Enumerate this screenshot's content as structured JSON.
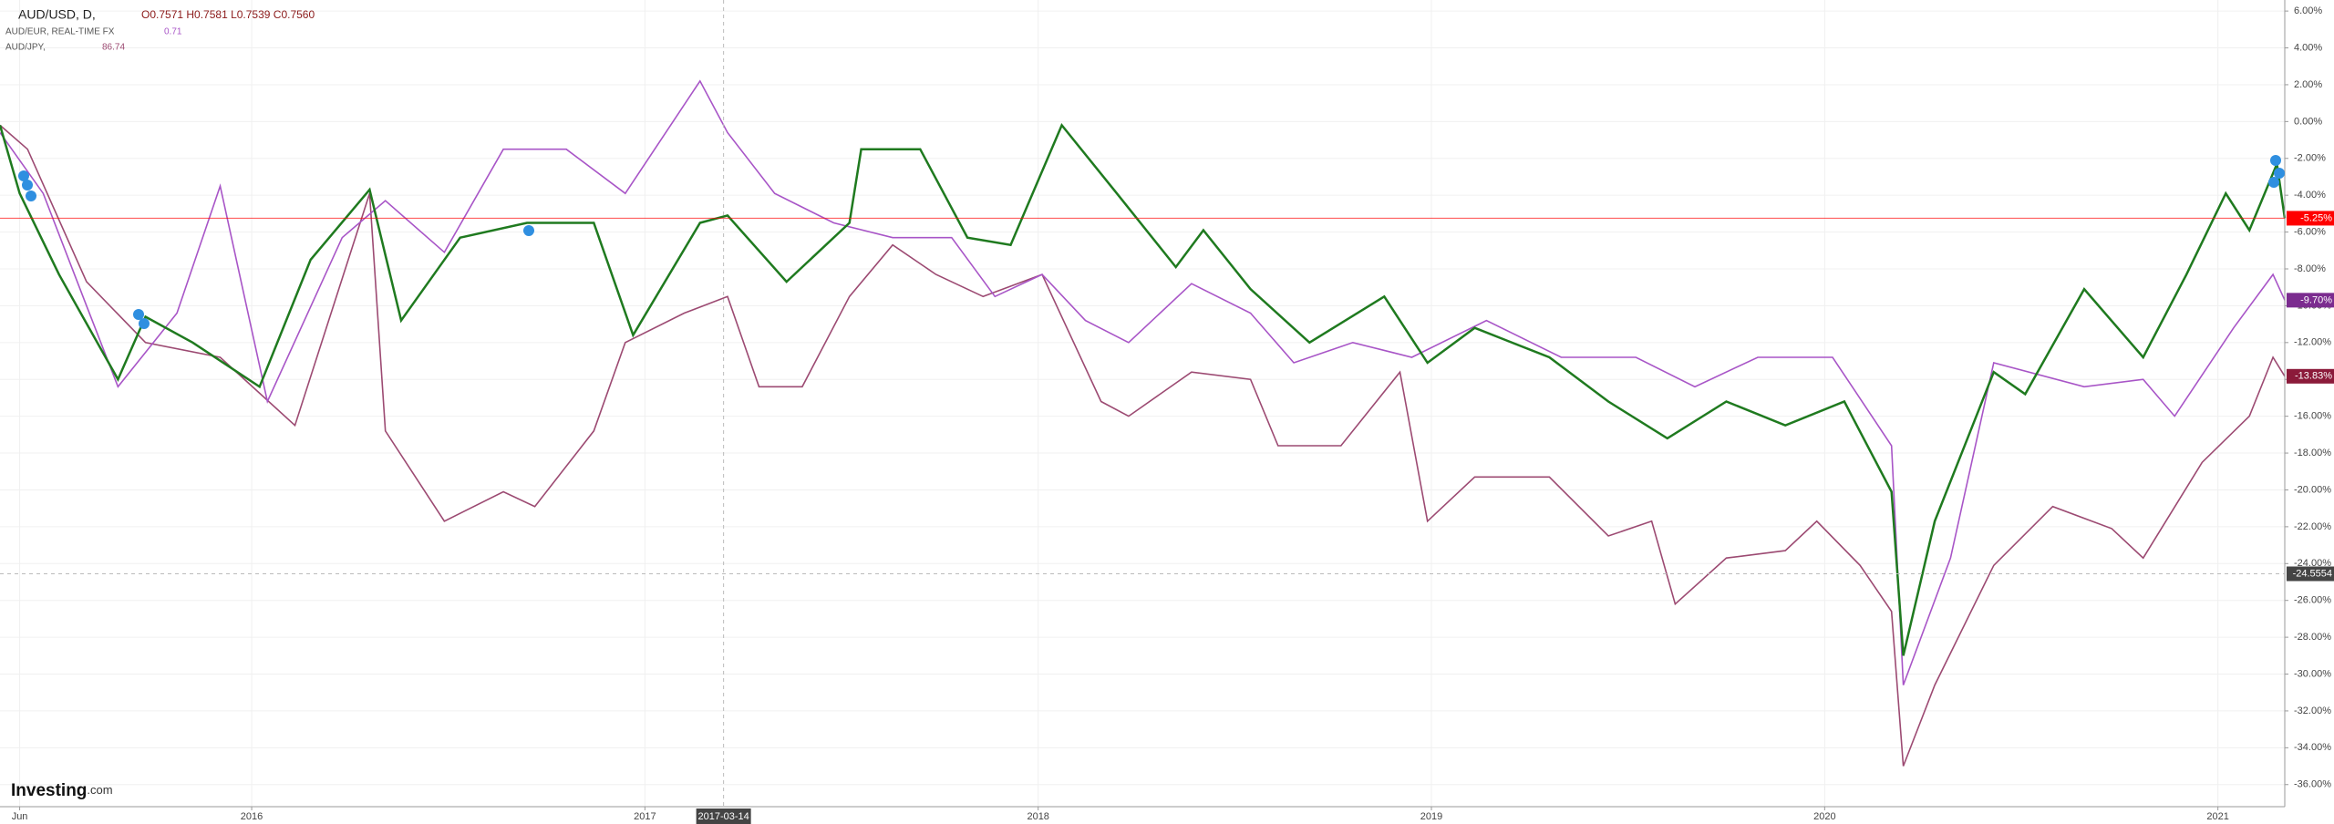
{
  "chart_data": {
    "type": "line",
    "header": {
      "ohlc": "O0.7571 H0.7581 L0.7539 C0.7560"
    },
    "series": [
      {
        "name": "AUD/USD, D,",
        "color": "#1f7a1f",
        "info": null,
        "x": [
          2015.36,
          2015.41,
          2015.51,
          2015.66,
          2015.73,
          2015.85,
          2016.02,
          2016.15,
          2016.3,
          2016.38,
          2016.53,
          2016.7,
          2016.87,
          2016.97,
          2017.14,
          2017.21,
          2017.36,
          2017.52,
          2017.55,
          2017.7,
          2017.82,
          2017.93,
          2018.06,
          2018.2,
          2018.35,
          2018.42,
          2018.54,
          2018.69,
          2018.88,
          2018.99,
          2019.11,
          2019.3,
          2019.45,
          2019.6,
          2019.75,
          2019.9,
          2020.05,
          2020.17,
          2020.2,
          2020.28,
          2020.43,
          2020.51,
          2020.66,
          2020.81,
          2020.92,
          2021.02,
          2021.08,
          2021.15,
          2021.17
        ],
        "values": [
          -0.2,
          -3.9,
          -8.3,
          -14,
          -10.6,
          -12,
          -14.4,
          -7.5,
          -3.7,
          -10.8,
          -6.3,
          -5.5,
          -5.5,
          -11.6,
          -5.5,
          -5.1,
          -8.7,
          -5.5,
          -1.5,
          -1.5,
          -6.3,
          -6.7,
          -0.2,
          -3.9,
          -7.9,
          -5.9,
          -9.1,
          -12,
          -9.5,
          -13.1,
          -11.2,
          -12.8,
          -15.2,
          -17.2,
          -15.2,
          -16.5,
          -15.2,
          -20.1,
          -29,
          -21.7,
          -13.6,
          -14.8,
          -9.1,
          -12.8,
          -8.3,
          -3.9,
          -5.9,
          -2.3,
          -5.25
        ],
        "last": {
          "value": -5.25,
          "label": "-5.25%",
          "color": "#ff0000"
        }
      },
      {
        "name": "AUD/EUR, REAL-TIME FX",
        "color": "#a855c7",
        "info": "0.71",
        "x": [
          2015.36,
          2015.47,
          2015.58,
          2015.66,
          2015.81,
          2015.92,
          2016.04,
          2016.23,
          2016.34,
          2016.49,
          2016.64,
          2016.8,
          2016.95,
          2017.14,
          2017.21,
          2017.33,
          2017.48,
          2017.63,
          2017.78,
          2017.89,
          2018.01,
          2018.12,
          2018.23,
          2018.39,
          2018.54,
          2018.65,
          2018.8,
          2018.95,
          2019.14,
          2019.33,
          2019.52,
          2019.67,
          2019.83,
          2020.02,
          2020.17,
          2020.2,
          2020.32,
          2020.43,
          2020.66,
          2020.81,
          2020.89,
          2021.04,
          2021.14,
          2021.17
        ],
        "values": [
          -0.6,
          -3.9,
          -10,
          -14.4,
          -10.4,
          -3.5,
          -15.2,
          -6.3,
          -4.3,
          -7.1,
          -1.5,
          -1.5,
          -3.9,
          2.2,
          -0.6,
          -3.9,
          -5.5,
          -6.3,
          -6.3,
          -9.5,
          -8.3,
          -10.8,
          -12,
          -8.8,
          -10.4,
          -13.1,
          -12,
          -12.8,
          -10.8,
          -12.8,
          -12.8,
          -14.4,
          -12.8,
          -12.8,
          -17.6,
          -30.6,
          -23.7,
          -13.1,
          -14.4,
          -14,
          -16,
          -11.2,
          -8.3,
          -9.7
        ],
        "last": {
          "value": -9.7,
          "label": "-9.70%",
          "color": "#7b2c8f"
        }
      },
      {
        "name": "AUD/JPY,",
        "color": "#9c4a72",
        "info": "86.74",
        "x": [
          2015.36,
          2015.43,
          2015.58,
          2015.73,
          2015.92,
          2016.11,
          2016.3,
          2016.34,
          2016.49,
          2016.64,
          2016.72,
          2016.87,
          2016.95,
          2017.1,
          2017.21,
          2017.29,
          2017.4,
          2017.52,
          2017.63,
          2017.74,
          2017.86,
          2018.01,
          2018.16,
          2018.23,
          2018.39,
          2018.54,
          2018.61,
          2018.77,
          2018.92,
          2018.99,
          2019.11,
          2019.3,
          2019.45,
          2019.56,
          2019.62,
          2019.75,
          2019.9,
          2019.98,
          2020.09,
          2020.17,
          2020.2,
          2020.28,
          2020.43,
          2020.58,
          2020.73,
          2020.81,
          2020.96,
          2021.08,
          2021.14,
          2021.17
        ],
        "values": [
          -0.2,
          -1.5,
          -8.7,
          -12,
          -12.8,
          -16.5,
          -3.9,
          -16.8,
          -21.7,
          -20.1,
          -20.9,
          -16.8,
          -12,
          -10.4,
          -9.5,
          -14.4,
          -14.4,
          -9.5,
          -6.7,
          -8.3,
          -9.5,
          -8.3,
          -15.2,
          -16,
          -13.6,
          -14,
          -17.6,
          -17.6,
          -13.6,
          -21.7,
          -19.3,
          -19.3,
          -22.5,
          -21.7,
          -26.2,
          -23.7,
          -23.3,
          -21.7,
          -24.1,
          -26.6,
          -35,
          -30.6,
          -24.1,
          -20.9,
          -22.1,
          -23.7,
          -18.5,
          -16,
          -12.8,
          -13.83
        ],
        "last": {
          "value": -13.83,
          "label": "-13.83%",
          "color": "#8b1a3a"
        }
      }
    ],
    "xlim": [
      2015.36,
      2021.17
    ],
    "xticks": [
      {
        "value": 2015.41,
        "label": "Jun"
      },
      2016,
      2017,
      2018,
      2019,
      2020,
      2021
    ],
    "ylim": [
      -37.2,
      6.6
    ],
    "yticks": [
      {
        "value": 6,
        "label": "6.00%"
      },
      {
        "value": 4,
        "label": "4.00%"
      },
      {
        "value": 2,
        "label": "2.00%"
      },
      {
        "value": 0,
        "label": "0.00%"
      },
      {
        "value": -2,
        "label": "-2.00%"
      },
      {
        "value": -4,
        "label": "-4.00%"
      },
      {
        "value": -6,
        "label": "-6.00%"
      },
      {
        "value": -8,
        "label": "-8.00%"
      },
      {
        "value": -10,
        "label": "-10.00%"
      },
      {
        "value": -12,
        "label": "-12.00%"
      },
      {
        "value": -14,
        "label": "-14.00%"
      },
      {
        "value": -16,
        "label": "-16.00%"
      },
      {
        "value": -18,
        "label": "-18.00%"
      },
      {
        "value": -20,
        "label": "-20.00%"
      },
      {
        "value": -22,
        "label": "-22.00%"
      },
      {
        "value": -24,
        "label": "-24.00%"
      },
      {
        "value": -26,
        "label": "-26.00%"
      },
      {
        "value": -28,
        "label": "-28.00%"
      },
      {
        "value": -30,
        "label": "-30.00%"
      },
      {
        "value": -32,
        "label": "-32.00%"
      },
      {
        "value": -34,
        "label": "-34.00%"
      },
      {
        "value": -36,
        "label": "-36.00%"
      }
    ],
    "grid": true,
    "crosshair": {
      "x": {
        "value": 2017.2,
        "label": "2017-03-14"
      },
      "y": {
        "value": -24.5554,
        "label": "-24.5554"
      }
    },
    "logo": {
      "main": "Investing",
      "suffix": ".com"
    }
  }
}
